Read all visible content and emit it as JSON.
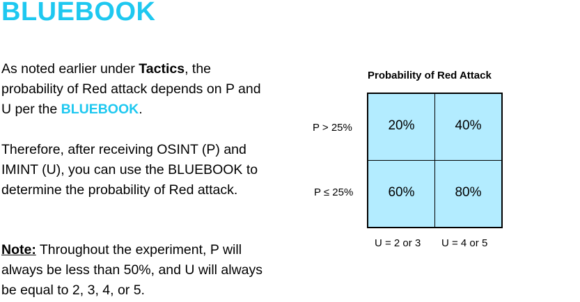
{
  "title": "BLUEBOOK",
  "paragraph1": {
    "text_a": "As noted earlier under ",
    "bold_term": "Tactics",
    "text_b": ", the probability of Red attack depends on P and U per the ",
    "accent_term": "BLUEBOOK",
    "text_c": "."
  },
  "paragraph2": {
    "text": "Therefore, after receiving OSINT (P) and IMINT (U),  you can use the BLUEBOOK to determine the probability of Red attack."
  },
  "paragraph3": {
    "note_label": "Note:",
    "text": " Throughout the experiment, P will always be less than 50%, and U will always be equal to 2, 3, 4, or 5."
  },
  "colors": {
    "accent": "#1ec8f0",
    "cell_fill": "#b3ecff"
  },
  "chart_data": {
    "type": "table",
    "title": "Probability of Red Attack",
    "row_labels": [
      "P > 25%",
      "P ≤ 25%"
    ],
    "col_labels": [
      "U = 2 or 3",
      "U = 4 or 5"
    ],
    "cells": [
      [
        "20%",
        "40%"
      ],
      [
        "60%",
        "80%"
      ]
    ]
  }
}
